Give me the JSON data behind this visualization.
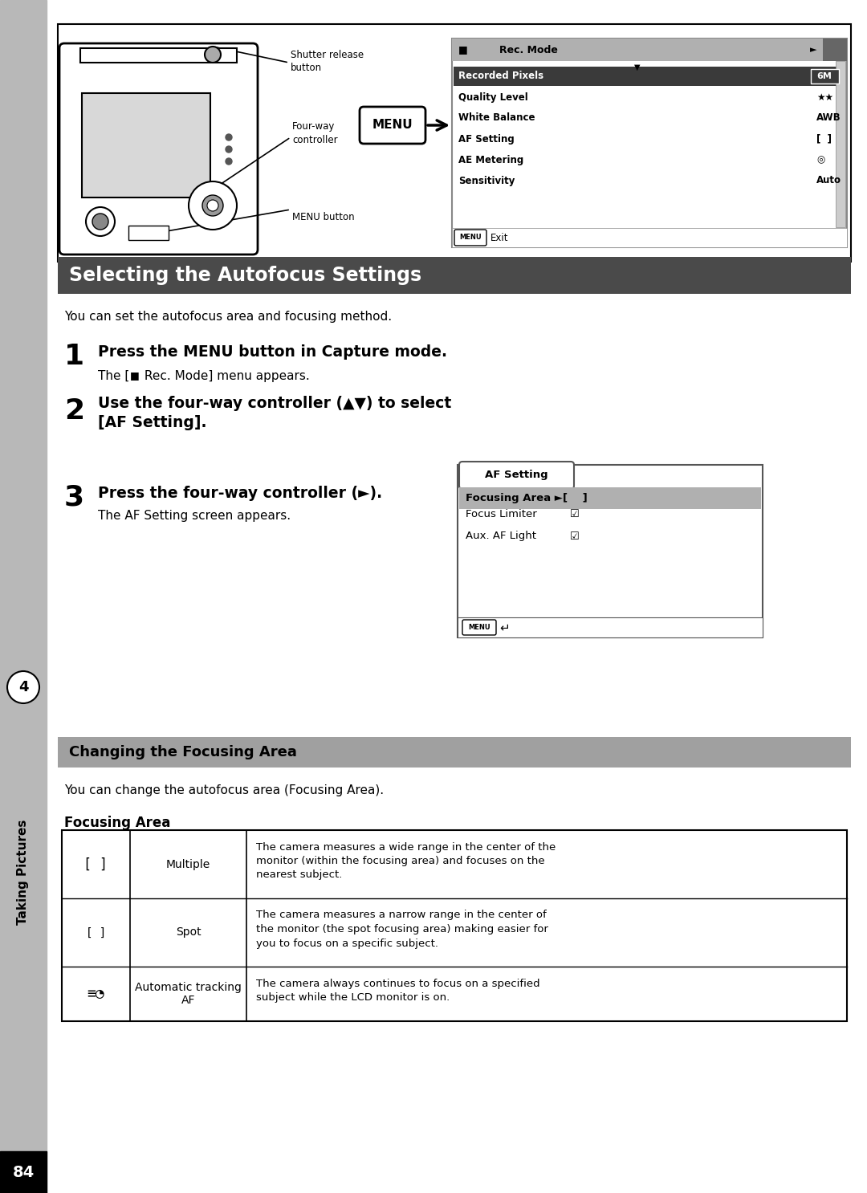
{
  "page_bg": "#ffffff",
  "sidebar_color": "#b8b8b8",
  "sidebar_number": "4",
  "sidebar_text": "Taking Pictures",
  "header_box_color": "#4a4a4a",
  "header_text": "Selecting the Autofocus Settings",
  "header_text_color": "#ffffff",
  "subheader_box_color": "#a0a0a0",
  "subheader_text": "Changing the Focusing Area",
  "subheader_text_color": "#000000",
  "intro_text": "You can set the autofocus area and focusing method.",
  "step1_num": "1",
  "step1_bold": "Press the MENU button in Capture mode.",
  "step1_sub": "The [  Rec. Mode] menu appears.",
  "step2_num": "2",
  "step2_bold_line1": "Use the four-way controller (▲▼) to select",
  "step2_bold_line2": "[AF Setting].",
  "step3_num": "3",
  "step3_bold": "Press the four-way controller (►).",
  "step3_sub": "The AF Setting screen appears.",
  "focusing_area_title": "Focusing Area",
  "change_intro": "You can change the autofocus area (Focusing Area).",
  "page_number": "84",
  "menu_items": [
    {
      "name": "Recorded Pixels",
      "val": "6M",
      "highlight": true
    },
    {
      "name": "Quality Level",
      "val": "★★",
      "highlight": false
    },
    {
      "name": "White Balance",
      "val": "AWB",
      "highlight": false
    },
    {
      "name": "AF Setting",
      "val": "[  ]",
      "highlight": false
    },
    {
      "name": "AE Metering",
      "val": "◎",
      "highlight": false
    },
    {
      "name": "Sensitivity",
      "val": "Auto",
      "highlight": false
    }
  ],
  "table_rows": [
    {
      "icon": "[ ]",
      "icon_size": 12,
      "label": "Multiple",
      "desc": "The camera measures a wide range in the center of the\nmonitor (within the focusing area) and focuses on the\nnearest subject."
    },
    {
      "icon": "[ ]",
      "icon_size": 10,
      "label": "Spot",
      "desc": "The camera measures a narrow range in the center of\nthe monitor (the spot focusing area) making easier for\nyou to focus on a specific subject."
    },
    {
      "icon": "≡◔",
      "icon_size": 13,
      "label": "Automatic tracking\nAF",
      "desc": "The camera always continues to focus on a specified\nsubject while the LCD monitor is on."
    }
  ]
}
